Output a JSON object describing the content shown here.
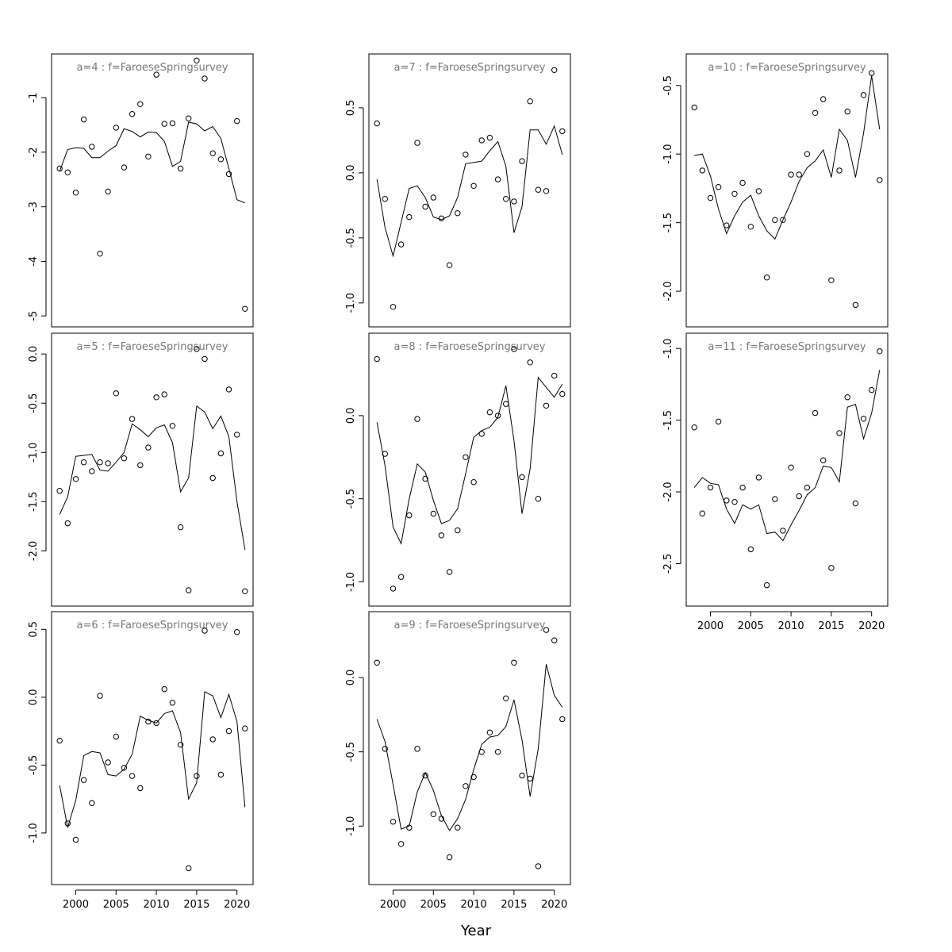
{
  "figure": {
    "xlabel": "Year"
  },
  "chart_data": [
    {
      "type": "scatter",
      "title": "a=4  :  f=FaroeseSpringsurvey",
      "xlim": [
        1998,
        2021
      ],
      "ylim": [
        -5,
        -0.4
      ],
      "yticks": [
        -1,
        -2,
        -3,
        -4,
        -5
      ],
      "xticks": [],
      "series": [
        {
          "kind": "points",
          "x": [
            1998,
            1999,
            2000,
            2001,
            2002,
            2003,
            2004,
            2005,
            2006,
            2007,
            2008,
            2009,
            2010,
            2011,
            2012,
            2013,
            2014,
            2015,
            2016,
            2017,
            2018,
            2019,
            2020,
            2021
          ],
          "y": [
            -2.3,
            -2.37,
            -2.74,
            -1.4,
            -1.9,
            -3.86,
            -2.72,
            -1.55,
            -2.28,
            -1.3,
            -1.12,
            -2.08,
            -0.58,
            -1.48,
            -1.47,
            -2.3,
            -1.38,
            -0.32,
            -0.65,
            -2.02,
            -2.13,
            -2.4,
            -1.43,
            -4.87
          ]
        },
        {
          "kind": "line",
          "x": [
            1998,
            1999,
            2000,
            2001,
            2002,
            2003,
            2004,
            2005,
            2006,
            2007,
            2008,
            2009,
            2010,
            2011,
            2012,
            2013,
            2014,
            2015,
            2016,
            2017,
            2018,
            2019,
            2020,
            2021
          ],
          "y": [
            -2.35,
            -1.95,
            -1.92,
            -1.93,
            -2.1,
            -2.1,
            -1.98,
            -1.88,
            -1.57,
            -1.62,
            -1.72,
            -1.63,
            -1.64,
            -1.8,
            -2.26,
            -2.17,
            -1.45,
            -1.48,
            -1.61,
            -1.53,
            -1.75,
            -2.3,
            -2.87,
            -2.93
          ]
        }
      ]
    },
    {
      "type": "scatter",
      "title": "a=5  :  f=FaroeseSpringsurvey",
      "xlim": [
        1998,
        2021
      ],
      "ylim": [
        -2.45,
        0.1
      ],
      "yticks": [
        0.0,
        -0.5,
        -1.0,
        -1.5,
        -2.0
      ],
      "ytick_labels": [
        "0.0",
        "-0.5",
        "-1.0",
        "-1.5",
        "-2.0"
      ],
      "xticks": [],
      "series": [
        {
          "kind": "points",
          "x": [
            1998,
            1999,
            2000,
            2001,
            2002,
            2003,
            2004,
            2005,
            2006,
            2007,
            2008,
            2009,
            2010,
            2011,
            2012,
            2013,
            2014,
            2015,
            2016,
            2017,
            2018,
            2019,
            2020,
            2021
          ],
          "y": [
            -1.39,
            -1.72,
            -1.27,
            -1.1,
            -1.19,
            -1.1,
            -1.11,
            -0.4,
            -1.06,
            -0.66,
            -1.13,
            -0.95,
            -0.44,
            -0.41,
            -0.73,
            -1.76,
            -2.4,
            0.05,
            -0.05,
            -1.26,
            -1.01,
            -0.36,
            -0.82,
            -2.41
          ]
        },
        {
          "kind": "line",
          "x": [
            1998,
            1999,
            2000,
            2001,
            2002,
            2003,
            2004,
            2005,
            2006,
            2007,
            2008,
            2009,
            2010,
            2011,
            2012,
            2013,
            2014,
            2015,
            2016,
            2017,
            2018,
            2019,
            2020,
            2021
          ],
          "y": [
            -1.63,
            -1.45,
            -1.04,
            -1.03,
            -1.02,
            -1.18,
            -1.19,
            -1.1,
            -1.0,
            -0.71,
            -0.77,
            -0.84,
            -0.75,
            -0.72,
            -0.9,
            -1.4,
            -1.26,
            -0.53,
            -0.59,
            -0.76,
            -0.63,
            -0.84,
            -1.5,
            -1.99
          ]
        }
      ]
    },
    {
      "type": "scatter",
      "title": "a=6  :  f=FaroeseSpringsurvey",
      "xlim": [
        1998,
        2021
      ],
      "ylim": [
        -1.3,
        0.55
      ],
      "yticks": [
        0.5,
        0.0,
        -0.5,
        -1.0
      ],
      "ytick_labels": [
        "0.5",
        "0.0",
        "-0.5",
        "-1.0"
      ],
      "xticks": [
        2000,
        2005,
        2010,
        2015,
        2020
      ],
      "series": [
        {
          "kind": "points",
          "x": [
            1998,
            1999,
            2000,
            2001,
            2002,
            2003,
            2004,
            2005,
            2006,
            2007,
            2008,
            2009,
            2010,
            2011,
            2012,
            2013,
            2014,
            2015,
            2016,
            2017,
            2018,
            2019,
            2020,
            2021
          ],
          "y": [
            -0.32,
            -0.93,
            -1.05,
            -0.61,
            -0.78,
            0.01,
            -0.48,
            -0.29,
            -0.52,
            -0.58,
            -0.67,
            -0.18,
            -0.19,
            0.06,
            -0.04,
            -0.35,
            -1.26,
            -0.58,
            0.49,
            -0.31,
            -0.57,
            -0.25,
            0.48,
            -0.23
          ]
        },
        {
          "kind": "line",
          "x": [
            1998,
            1999,
            2000,
            2001,
            2002,
            2003,
            2004,
            2005,
            2006,
            2007,
            2008,
            2009,
            2010,
            2011,
            2012,
            2013,
            2014,
            2015,
            2016,
            2017,
            2018,
            2019,
            2020,
            2021
          ],
          "y": [
            -0.65,
            -0.96,
            -0.76,
            -0.43,
            -0.4,
            -0.41,
            -0.57,
            -0.58,
            -0.53,
            -0.42,
            -0.14,
            -0.17,
            -0.19,
            -0.12,
            -0.1,
            -0.26,
            -0.75,
            -0.63,
            0.04,
            0.01,
            -0.15,
            0.02,
            -0.18,
            -0.81
          ]
        }
      ]
    },
    {
      "type": "scatter",
      "title": "a=7  :  f=FaroeseSpringsurvey",
      "xlim": [
        1998,
        2021
      ],
      "ylim": [
        -1.1,
        0.83
      ],
      "yticks": [
        0.5,
        0.0,
        -0.5,
        -1.0
      ],
      "ytick_labels": [
        "0.5",
        "0.0",
        "-0.5",
        "-1.0"
      ],
      "xticks": [],
      "series": [
        {
          "kind": "points",
          "x": [
            1998,
            1999,
            2000,
            2001,
            2002,
            2003,
            2004,
            2005,
            2006,
            2007,
            2008,
            2009,
            2010,
            2011,
            2012,
            2013,
            2014,
            2015,
            2016,
            2017,
            2018,
            2019,
            2020,
            2021
          ],
          "y": [
            0.38,
            -0.2,
            -1.03,
            -0.55,
            -0.34,
            0.23,
            -0.26,
            -0.19,
            -0.35,
            -0.71,
            -0.31,
            0.14,
            -0.1,
            0.25,
            0.27,
            -0.05,
            -0.2,
            -0.22,
            0.09,
            0.55,
            -0.13,
            -0.14,
            0.79,
            0.32
          ]
        },
        {
          "kind": "line",
          "x": [
            1998,
            1999,
            2000,
            2001,
            2002,
            2003,
            2004,
            2005,
            2006,
            2007,
            2008,
            2009,
            2010,
            2011,
            2012,
            2013,
            2014,
            2015,
            2016,
            2017,
            2018,
            2019,
            2020,
            2021
          ],
          "y": [
            -0.05,
            -0.42,
            -0.64,
            -0.38,
            -0.12,
            -0.1,
            -0.19,
            -0.34,
            -0.36,
            -0.33,
            -0.19,
            0.07,
            0.08,
            0.09,
            0.17,
            0.24,
            0.05,
            -0.46,
            -0.26,
            0.33,
            0.33,
            0.22,
            0.36,
            0.14
          ]
        }
      ]
    },
    {
      "type": "scatter",
      "title": "a=8  :  f=FaroeseSpringsurvey",
      "xlim": [
        1998,
        2021
      ],
      "ylim": [
        -1.08,
        0.43
      ],
      "yticks": [
        0.0,
        -0.5,
        -1.0
      ],
      "ytick_labels": [
        "0.0",
        "-0.5",
        "-1.0"
      ],
      "xticks": [],
      "series": [
        {
          "kind": "points",
          "x": [
            1998,
            1999,
            2000,
            2001,
            2002,
            2003,
            2004,
            2005,
            2006,
            2007,
            2008,
            2009,
            2010,
            2011,
            2012,
            2013,
            2014,
            2015,
            2016,
            2017,
            2018,
            2019,
            2020,
            2021
          ],
          "y": [
            0.34,
            -0.23,
            -1.04,
            -0.97,
            -0.6,
            -0.02,
            -0.38,
            -0.59,
            -0.72,
            -0.94,
            -0.69,
            -0.25,
            -0.4,
            -0.11,
            0.02,
            0.0,
            0.07,
            0.4,
            -0.37,
            0.32,
            -0.5,
            0.06,
            0.24,
            0.13
          ]
        },
        {
          "kind": "line",
          "x": [
            1998,
            1999,
            2000,
            2001,
            2002,
            2003,
            2004,
            2005,
            2006,
            2007,
            2008,
            2009,
            2010,
            2011,
            2012,
            2013,
            2014,
            2015,
            2016,
            2017,
            2018,
            2019,
            2020,
            2021
          ],
          "y": [
            -0.04,
            -0.3,
            -0.67,
            -0.77,
            -0.5,
            -0.29,
            -0.34,
            -0.51,
            -0.65,
            -0.63,
            -0.56,
            -0.35,
            -0.13,
            -0.09,
            -0.07,
            -0.01,
            0.18,
            -0.15,
            -0.59,
            -0.32,
            0.23,
            0.17,
            0.11,
            0.19
          ]
        }
      ]
    },
    {
      "type": "scatter",
      "title": "a=9  :  f=FaroeseSpringsurvey",
      "xlim": [
        1998,
        2021
      ],
      "ylim": [
        -1.32,
        0.37
      ],
      "yticks": [
        0.0,
        -0.5,
        -1.0
      ],
      "ytick_labels": [
        "0.0",
        "-0.5",
        "-1.0"
      ],
      "xticks": [
        2000,
        2005,
        2010,
        2015,
        2020
      ],
      "series": [
        {
          "kind": "points",
          "x": [
            1998,
            1999,
            2000,
            2001,
            2002,
            2003,
            2004,
            2005,
            2006,
            2007,
            2008,
            2009,
            2010,
            2011,
            2012,
            2013,
            2014,
            2015,
            2016,
            2017,
            2018,
            2019,
            2020,
            2021
          ],
          "y": [
            0.1,
            -0.48,
            -0.97,
            -1.12,
            -1.01,
            -0.48,
            -0.66,
            -0.92,
            -0.95,
            -1.21,
            -1.01,
            -0.73,
            -0.67,
            -0.5,
            -0.37,
            -0.5,
            -0.14,
            0.1,
            -0.66,
            -0.68,
            -1.27,
            0.32,
            0.25,
            -0.28
          ]
        },
        {
          "kind": "line",
          "x": [
            1998,
            1999,
            2000,
            2001,
            2002,
            2003,
            2004,
            2005,
            2006,
            2007,
            2008,
            2009,
            2010,
            2011,
            2012,
            2013,
            2014,
            2015,
            2016,
            2017,
            2018,
            2019,
            2020,
            2021
          ],
          "y": [
            -0.28,
            -0.43,
            -0.72,
            -1.02,
            -1.0,
            -0.77,
            -0.64,
            -0.76,
            -0.93,
            -1.03,
            -0.95,
            -0.82,
            -0.62,
            -0.45,
            -0.4,
            -0.39,
            -0.33,
            -0.15,
            -0.42,
            -0.8,
            -0.48,
            0.09,
            -0.12,
            -0.2
          ]
        }
      ]
    },
    {
      "type": "scatter",
      "title": "a=10  :  f=FaroeseSpringsurvey",
      "xlim": [
        1998,
        2021
      ],
      "ylim": [
        -2.18,
        -0.35
      ],
      "yticks": [
        -0.5,
        -1.0,
        -1.5,
        -2.0
      ],
      "ytick_labels": [
        "-0.5",
        "-1.0",
        "-1.5",
        "-2.0"
      ],
      "xticks": [],
      "series": [
        {
          "kind": "points",
          "x": [
            1998,
            1999,
            2000,
            2001,
            2002,
            2003,
            2004,
            2005,
            2006,
            2007,
            2008,
            2009,
            2010,
            2011,
            2012,
            2013,
            2014,
            2015,
            2016,
            2017,
            2018,
            2019,
            2020,
            2021
          ],
          "y": [
            -0.66,
            -1.12,
            -1.32,
            -1.24,
            -1.52,
            -1.29,
            -1.21,
            -1.53,
            -1.27,
            -1.9,
            -1.48,
            -1.48,
            -1.15,
            -1.15,
            -1.0,
            -0.7,
            -0.6,
            -1.92,
            -1.12,
            -0.69,
            -2.1,
            -0.57,
            -0.41,
            -1.19
          ]
        },
        {
          "kind": "line",
          "x": [
            1998,
            1999,
            2000,
            2001,
            2002,
            2003,
            2004,
            2005,
            2006,
            2007,
            2008,
            2009,
            2010,
            2011,
            2012,
            2013,
            2014,
            2015,
            2016,
            2017,
            2018,
            2019,
            2020,
            2021
          ],
          "y": [
            -1.01,
            -1.0,
            -1.16,
            -1.4,
            -1.58,
            -1.45,
            -1.35,
            -1.3,
            -1.45,
            -1.56,
            -1.62,
            -1.48,
            -1.35,
            -1.2,
            -1.1,
            -1.05,
            -0.97,
            -1.17,
            -0.82,
            -0.9,
            -1.17,
            -0.85,
            -0.43,
            -0.82
          ]
        }
      ]
    },
    {
      "type": "scatter",
      "title": "a=11  :  f=FaroeseSpringsurvey",
      "xlim": [
        1998,
        2021
      ],
      "ylim": [
        -2.72,
        -0.97
      ],
      "yticks": [
        -1.0,
        -1.5,
        -2.0,
        -2.5
      ],
      "ytick_labels": [
        "-1.0",
        "-1.5",
        "-2.0",
        "-2.5"
      ],
      "xticks": [
        2000,
        2005,
        2010,
        2015,
        2020
      ],
      "series": [
        {
          "kind": "points",
          "x": [
            1998,
            1999,
            2000,
            2001,
            2002,
            2003,
            2004,
            2005,
            2006,
            2007,
            2008,
            2009,
            2010,
            2011,
            2012,
            2013,
            2014,
            2015,
            2016,
            2017,
            2018,
            2019,
            2020,
            2021
          ],
          "y": [
            -1.55,
            -2.15,
            -1.97,
            -1.51,
            -2.06,
            -2.07,
            -1.97,
            -2.4,
            -1.9,
            -2.65,
            -2.05,
            -2.27,
            -1.83,
            -2.03,
            -1.97,
            -1.45,
            -1.78,
            -2.53,
            -1.59,
            -1.34,
            -2.08,
            -1.49,
            -1.29,
            -1.02
          ]
        },
        {
          "kind": "line",
          "x": [
            1998,
            1999,
            2000,
            2001,
            2002,
            2003,
            2004,
            2005,
            2006,
            2007,
            2008,
            2009,
            2010,
            2011,
            2012,
            2013,
            2014,
            2015,
            2016,
            2017,
            2018,
            2019,
            2020,
            2021
          ],
          "y": [
            -1.97,
            -1.9,
            -1.94,
            -1.95,
            -2.12,
            -2.22,
            -2.09,
            -2.12,
            -2.09,
            -2.29,
            -2.28,
            -2.34,
            -2.23,
            -2.13,
            -2.02,
            -1.97,
            -1.82,
            -1.83,
            -1.93,
            -1.41,
            -1.39,
            -1.63,
            -1.45,
            -1.15
          ]
        }
      ]
    }
  ]
}
